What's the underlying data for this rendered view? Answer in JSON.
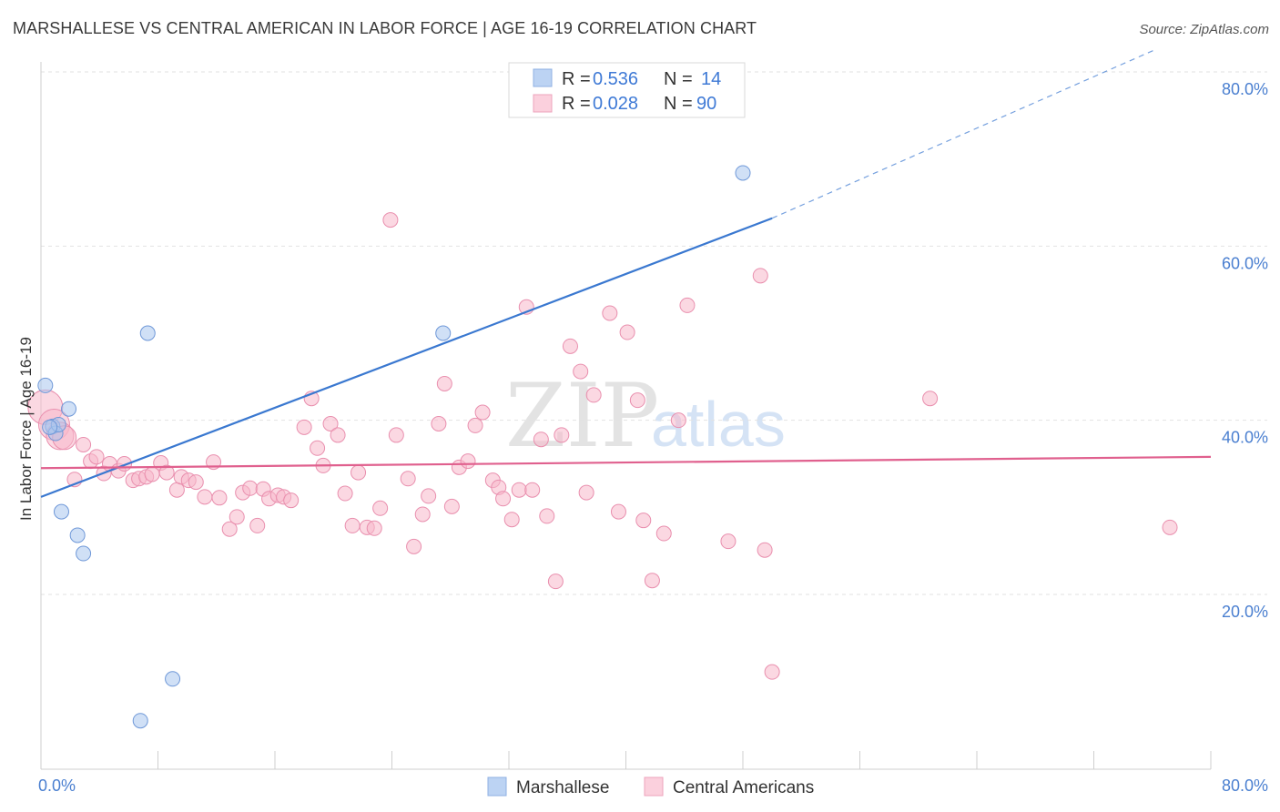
{
  "header": {
    "title": "MARSHALLESE VS CENTRAL AMERICAN IN LABOR FORCE | AGE 16-19 CORRELATION CHART",
    "source": "Source: ZipAtlas.com"
  },
  "legend": {
    "rows": [
      {
        "r_label": "R =",
        "r_value": "0.536",
        "n_label": "N =",
        "n_value": "14",
        "color": "#a9c6ef"
      },
      {
        "r_label": "R =",
        "r_value": "0.028",
        "n_label": "N =",
        "n_value": "90",
        "color": "#f7b8cb"
      }
    ]
  },
  "bottom_legend": {
    "items": [
      {
        "label": "Marshallese",
        "color": "#a9c6ef"
      },
      {
        "label": "Central Americans",
        "color": "#f7b8cb"
      }
    ]
  },
  "watermark": {
    "zip": "ZIP",
    "atlas": "atlas"
  },
  "chart_data": {
    "type": "scatter",
    "title": "MARSHALLESE VS CENTRAL AMERICAN IN LABOR FORCE | AGE 16-19 CORRELATION CHART",
    "xlabel": "",
    "ylabel": "In Labor Force | Age 16-19",
    "xlim": [
      0,
      80
    ],
    "ylim": [
      0,
      82
    ],
    "x_tick_labels": [
      "0.0%",
      "80.0%"
    ],
    "y_tick_labels": [
      "20.0%",
      "40.0%",
      "60.0%",
      "80.0%"
    ],
    "y_ticks": [
      20,
      40,
      60,
      80
    ],
    "grid": true,
    "legend_position": "top-center",
    "colors": {
      "marshallese": "#4a7fd0",
      "central_americans": "#e8709a",
      "tick_text": "#4a7fd0"
    },
    "series": [
      {
        "name": "Marshallese",
        "color": "#a9c6ef",
        "stroke": "#6f98d8",
        "trend": {
          "x0": 0,
          "y0": 31.2,
          "x1": 50,
          "y1": 63.2,
          "dashed_to_x": 80,
          "dashed_to_y": 82.5,
          "color": "#3a78d0"
        },
        "points": [
          [
            0.3,
            44.0
          ],
          [
            0.8,
            39.3
          ],
          [
            1.0,
            38.5
          ],
          [
            1.2,
            39.5
          ],
          [
            1.9,
            41.3
          ],
          [
            1.4,
            29.5
          ],
          [
            2.5,
            26.8
          ],
          [
            2.9,
            24.7
          ],
          [
            7.3,
            50.0
          ],
          [
            9.0,
            10.3
          ],
          [
            6.8,
            5.5
          ],
          [
            27.5,
            50.0
          ],
          [
            48.0,
            68.4
          ],
          [
            0.6,
            39.2
          ]
        ]
      },
      {
        "name": "Central Americans",
        "color": "#f7b8cb",
        "stroke": "#e98fae",
        "trend": {
          "x0": 0,
          "y0": 34.5,
          "x1": 80,
          "y1": 35.8,
          "color": "#e0608e"
        },
        "points": [
          [
            0.3,
            41.5
          ],
          [
            0.9,
            39.5
          ],
          [
            1.3,
            38.2
          ],
          [
            1.6,
            38.0
          ],
          [
            2.3,
            33.2
          ],
          [
            2.9,
            37.2
          ],
          [
            3.4,
            35.3
          ],
          [
            3.8,
            35.8
          ],
          [
            4.3,
            33.9
          ],
          [
            4.7,
            35.0
          ],
          [
            5.3,
            34.2
          ],
          [
            5.7,
            35.0
          ],
          [
            6.3,
            33.1
          ],
          [
            6.7,
            33.3
          ],
          [
            7.2,
            33.5
          ],
          [
            7.6,
            33.8
          ],
          [
            8.2,
            35.1
          ],
          [
            8.6,
            34.0
          ],
          [
            9.3,
            32.0
          ],
          [
            9.6,
            33.5
          ],
          [
            10.1,
            33.1
          ],
          [
            10.6,
            32.9
          ],
          [
            11.2,
            31.2
          ],
          [
            11.8,
            35.2
          ],
          [
            12.2,
            31.1
          ],
          [
            12.9,
            27.5
          ],
          [
            13.4,
            28.9
          ],
          [
            13.8,
            31.7
          ],
          [
            14.3,
            32.2
          ],
          [
            14.8,
            27.9
          ],
          [
            15.2,
            32.1
          ],
          [
            15.6,
            31.0
          ],
          [
            16.2,
            31.4
          ],
          [
            16.6,
            31.2
          ],
          [
            17.1,
            30.8
          ],
          [
            18.0,
            39.2
          ],
          [
            18.5,
            42.5
          ],
          [
            18.9,
            36.8
          ],
          [
            19.3,
            34.8
          ],
          [
            19.8,
            39.6
          ],
          [
            20.3,
            38.3
          ],
          [
            20.8,
            31.6
          ],
          [
            21.3,
            27.9
          ],
          [
            21.7,
            34.0
          ],
          [
            22.3,
            27.7
          ],
          [
            22.8,
            27.6
          ],
          [
            23.2,
            29.9
          ],
          [
            23.9,
            63.0
          ],
          [
            24.3,
            38.3
          ],
          [
            25.1,
            33.3
          ],
          [
            25.5,
            25.5
          ],
          [
            26.1,
            29.2
          ],
          [
            26.5,
            31.3
          ],
          [
            27.2,
            39.6
          ],
          [
            27.6,
            44.2
          ],
          [
            28.1,
            30.1
          ],
          [
            28.6,
            34.6
          ],
          [
            29.2,
            35.3
          ],
          [
            29.7,
            39.4
          ],
          [
            30.2,
            40.9
          ],
          [
            30.9,
            33.1
          ],
          [
            31.3,
            32.3
          ],
          [
            31.6,
            31.0
          ],
          [
            32.2,
            28.6
          ],
          [
            32.7,
            32.0
          ],
          [
            33.2,
            53.0
          ],
          [
            33.6,
            32.0
          ],
          [
            34.2,
            37.8
          ],
          [
            34.6,
            29.0
          ],
          [
            35.2,
            21.5
          ],
          [
            35.6,
            38.3
          ],
          [
            36.2,
            48.5
          ],
          [
            36.9,
            45.6
          ],
          [
            37.3,
            31.7
          ],
          [
            37.8,
            42.9
          ],
          [
            38.9,
            52.3
          ],
          [
            39.5,
            29.5
          ],
          [
            40.1,
            50.1
          ],
          [
            40.8,
            42.3
          ],
          [
            41.2,
            28.5
          ],
          [
            41.8,
            21.6
          ],
          [
            42.6,
            27.0
          ],
          [
            43.6,
            40.0
          ],
          [
            44.2,
            53.2
          ],
          [
            47.0,
            26.1
          ],
          [
            49.2,
            56.6
          ],
          [
            49.5,
            25.1
          ],
          [
            50.0,
            11.1
          ],
          [
            60.8,
            42.5
          ],
          [
            77.2,
            27.7
          ]
        ]
      }
    ]
  }
}
